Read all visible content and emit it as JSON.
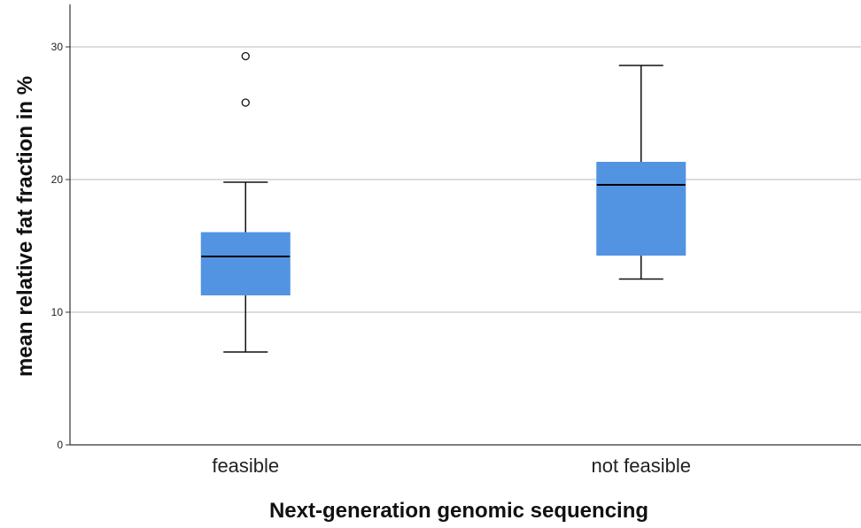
{
  "chart_data": {
    "type": "boxplot",
    "xlabel": "Next-generation genomic sequencing",
    "ylabel": "mean relative fat fraction in %",
    "ylim": [
      0,
      33.2
    ],
    "yticks": [
      0,
      10,
      20,
      30
    ],
    "grid": true,
    "box_color": "#5294e2",
    "categories": [
      "feasible",
      "not feasible"
    ],
    "boxes": [
      {
        "category": "feasible",
        "whisker_low": 7.0,
        "q1": 11.3,
        "median": 14.2,
        "q3": 16.0,
        "whisker_high": 19.8,
        "outliers": [
          25.8,
          29.3
        ]
      },
      {
        "category": "not feasible",
        "whisker_low": 12.5,
        "q1": 14.3,
        "median": 19.6,
        "q3": 21.3,
        "whisker_high": 28.6,
        "outliers": []
      }
    ]
  }
}
